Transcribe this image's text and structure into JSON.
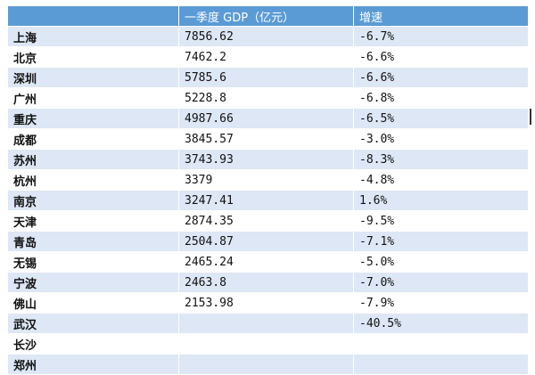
{
  "table": {
    "headers": [
      "",
      "一季度 GDP（亿元）",
      "增速"
    ],
    "rows": [
      {
        "city": "上海",
        "gdp": "7856.62",
        "growth": "-6.7%"
      },
      {
        "city": "北京",
        "gdp": "7462.2",
        "growth": "-6.6%"
      },
      {
        "city": "深圳",
        "gdp": "5785.6",
        "growth": "-6.6%"
      },
      {
        "city": "广州",
        "gdp": "5228.8",
        "growth": "-6.8%"
      },
      {
        "city": "重庆",
        "gdp": "4987.66",
        "growth": "-6.5%"
      },
      {
        "city": "成都",
        "gdp": "3845.57",
        "growth": "-3.0%"
      },
      {
        "city": "苏州",
        "gdp": "3743.93",
        "growth": "-8.3%"
      },
      {
        "city": "杭州",
        "gdp": "3379",
        "growth": "-4.8%"
      },
      {
        "city": "南京",
        "gdp": "3247.41",
        "growth": "1.6%"
      },
      {
        "city": "天津",
        "gdp": "2874.35",
        "growth": "-9.5%"
      },
      {
        "city": "青岛",
        "gdp": "2504.87",
        "growth": "-7.1%"
      },
      {
        "city": "无锡",
        "gdp": "2465.24",
        "growth": "-5.0%"
      },
      {
        "city": "宁波",
        "gdp": "2463.8",
        "growth": "-7.0%"
      },
      {
        "city": "佛山",
        "gdp": "2153.98",
        "growth": "-7.9%"
      },
      {
        "city": "武汉",
        "gdp": "",
        "growth": "-40.5%"
      },
      {
        "city": "长沙",
        "gdp": "",
        "growth": ""
      },
      {
        "city": "郑州",
        "gdp": "",
        "growth": ""
      }
    ]
  },
  "colors": {
    "header_bg": "#5b9bd5",
    "band_bg": "#dde7f5"
  }
}
